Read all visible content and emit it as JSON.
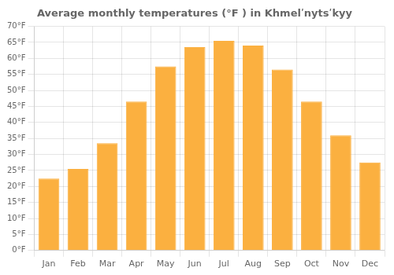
{
  "chart_data": {
    "type": "bar",
    "title": "Average monthly temperatures (°F ) in Khmelʹnytsʹkyy",
    "categories": [
      "Jan",
      "Feb",
      "Mar",
      "Apr",
      "May",
      "Jun",
      "Jul",
      "Aug",
      "Sep",
      "Oct",
      "Nov",
      "Dec"
    ],
    "values": [
      22.5,
      25.5,
      33.5,
      46.5,
      57.5,
      63.5,
      65.5,
      64.0,
      56.5,
      46.5,
      36.0,
      27.5
    ],
    "color": "#FBB040",
    "ylim": [
      0,
      70
    ],
    "yticks": [
      {
        "value": 0,
        "label": "0°F"
      },
      {
        "value": 5,
        "label": "5°F"
      },
      {
        "value": 10,
        "label": "10°F"
      },
      {
        "value": 15,
        "label": "15°F"
      },
      {
        "value": 20,
        "label": "20°F"
      },
      {
        "value": 25,
        "label": "25°F"
      },
      {
        "value": 30,
        "label": "30°F"
      },
      {
        "value": 35,
        "label": "35°F"
      },
      {
        "value": 40,
        "label": "40°F"
      },
      {
        "value": 45,
        "label": "45°F"
      },
      {
        "value": 50,
        "label": "50°F"
      },
      {
        "value": 55,
        "label": "55°F"
      },
      {
        "value": 60,
        "label": "60°F"
      },
      {
        "value": 65,
        "label": "65°F"
      },
      {
        "value": 70,
        "label": "70°F"
      }
    ],
    "grid": true
  }
}
